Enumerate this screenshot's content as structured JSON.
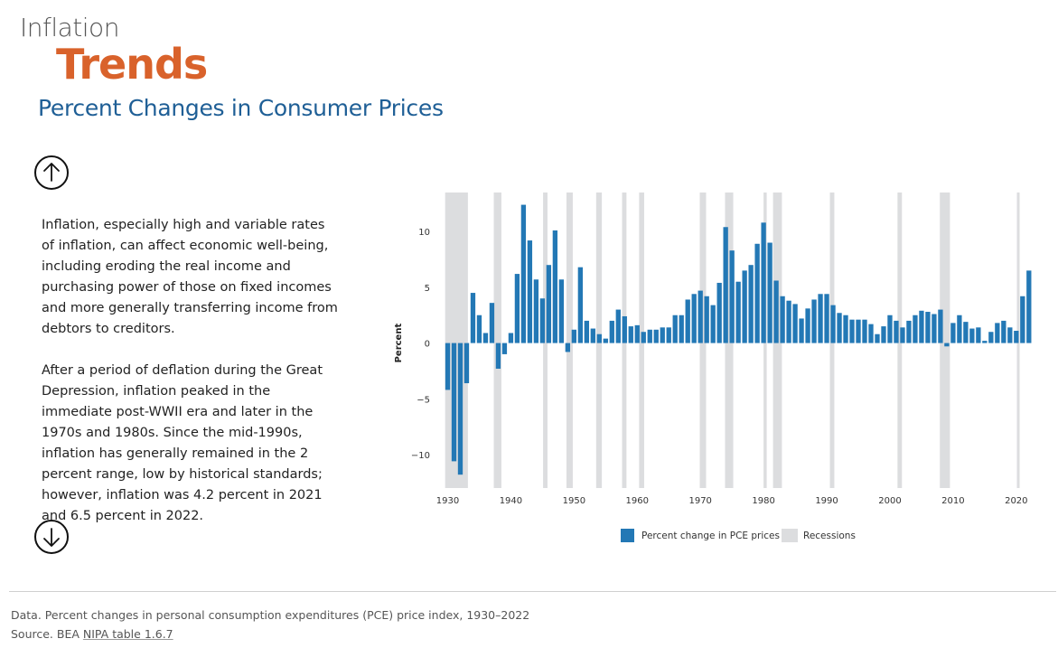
{
  "header": {
    "kicker": "Inflation",
    "title": "Trends",
    "subtitle": "Percent Changes in Consumer Prices"
  },
  "body": {
    "paragraph_1": "Inflation, especially high and variable rates of inflation, can affect economic well-being, including eroding the real income and purchasing power of those on fixed incomes and more generally transferring income from debtors to creditors.",
    "paragraph_2": "After a period of deflation during the Great Depression, inflation peaked in the immediate post-WWII era and later in the 1970s and 1980s. Since the mid-1990s, inflation has generally remained in the 2 percent range, low by historical standards; however, inflation was 4.2 percent in 2021 and 6.5 percent in 2022."
  },
  "navigation": {
    "up_icon": "arrow-up-circle-icon",
    "down_icon": "arrow-down-circle-icon"
  },
  "footer": {
    "data_note": "Data. Percent changes in personal consumption expenditures (PCE) price index, 1930–2022",
    "source_prefix": "Source. BEA ",
    "source_link": "NIPA table 1.6.7"
  },
  "colors": {
    "bar": "#2378b5",
    "recession": "#dcdddf",
    "kicker": "#555555",
    "title": "#d9622b",
    "subtitle": "#1f5f96"
  },
  "chart_data": {
    "type": "bar",
    "title": "",
    "xlabel": "",
    "ylabel": "Percent",
    "ylim": [
      -13,
      13.5
    ],
    "yticks": [
      -10,
      -5,
      0,
      5,
      10
    ],
    "ytick_labels": [
      "−10",
      "−5",
      "0",
      "5",
      "10"
    ],
    "xticks": [
      1930,
      1940,
      1950,
      1960,
      1970,
      1980,
      1990,
      2000,
      2010,
      2020
    ],
    "grid": false,
    "legend_position": "bottom",
    "series": [
      {
        "name": "Percent change in PCE prices",
        "x": [
          1930,
          1931,
          1932,
          1933,
          1934,
          1935,
          1936,
          1937,
          1938,
          1939,
          1940,
          1941,
          1942,
          1943,
          1944,
          1945,
          1946,
          1947,
          1948,
          1949,
          1950,
          1951,
          1952,
          1953,
          1954,
          1955,
          1956,
          1957,
          1958,
          1959,
          1960,
          1961,
          1962,
          1963,
          1964,
          1965,
          1966,
          1967,
          1968,
          1969,
          1970,
          1971,
          1972,
          1973,
          1974,
          1975,
          1976,
          1977,
          1978,
          1979,
          1980,
          1981,
          1982,
          1983,
          1984,
          1985,
          1986,
          1987,
          1988,
          1989,
          1990,
          1991,
          1992,
          1993,
          1994,
          1995,
          1996,
          1997,
          1998,
          1999,
          2000,
          2001,
          2002,
          2003,
          2004,
          2005,
          2006,
          2007,
          2008,
          2009,
          2010,
          2011,
          2012,
          2013,
          2014,
          2015,
          2016,
          2017,
          2018,
          2019,
          2020,
          2021,
          2022
        ],
        "values": [
          -4.2,
          -10.6,
          -11.8,
          -3.6,
          4.5,
          2.5,
          0.9,
          3.6,
          -2.3,
          -1.0,
          0.9,
          6.2,
          12.4,
          9.2,
          5.7,
          4.0,
          7.0,
          10.1,
          5.7,
          -0.8,
          1.2,
          6.8,
          2.0,
          1.3,
          0.8,
          0.4,
          2.0,
          3.0,
          2.4,
          1.5,
          1.6,
          1.0,
          1.2,
          1.2,
          1.4,
          1.4,
          2.5,
          2.5,
          3.9,
          4.4,
          4.7,
          4.2,
          3.4,
          5.4,
          10.4,
          8.3,
          5.5,
          6.5,
          7.0,
          8.9,
          10.8,
          9.0,
          5.6,
          4.2,
          3.8,
          3.5,
          2.2,
          3.1,
          3.9,
          4.4,
          4.4,
          3.4,
          2.7,
          2.5,
          2.1,
          2.1,
          2.1,
          1.7,
          0.8,
          1.5,
          2.5,
          2.0,
          1.4,
          2.0,
          2.5,
          2.9,
          2.8,
          2.6,
          3.0,
          -0.3,
          1.8,
          2.5,
          1.9,
          1.3,
          1.4,
          0.2,
          1.0,
          1.8,
          2.0,
          1.4,
          1.1,
          4.2,
          6.5
        ]
      }
    ],
    "recessions": [
      {
        "name": "Recessions",
        "periods": [
          [
            1929.6,
            1933.2
          ],
          [
            1937.3,
            1938.5
          ],
          [
            1945.1,
            1945.8
          ],
          [
            1948.8,
            1949.8
          ],
          [
            1953.5,
            1954.4
          ],
          [
            1957.6,
            1958.3
          ],
          [
            1960.3,
            1961.1
          ],
          [
            1969.9,
            1970.9
          ],
          [
            1973.9,
            1975.2
          ],
          [
            1980.0,
            1980.5
          ],
          [
            1981.5,
            1982.9
          ],
          [
            1990.5,
            1991.2
          ],
          [
            2001.2,
            2001.9
          ],
          [
            2007.9,
            2009.5
          ],
          [
            2020.1,
            2020.4
          ]
        ]
      }
    ],
    "legend": [
      "Percent change in PCE prices",
      "Recessions"
    ]
  }
}
